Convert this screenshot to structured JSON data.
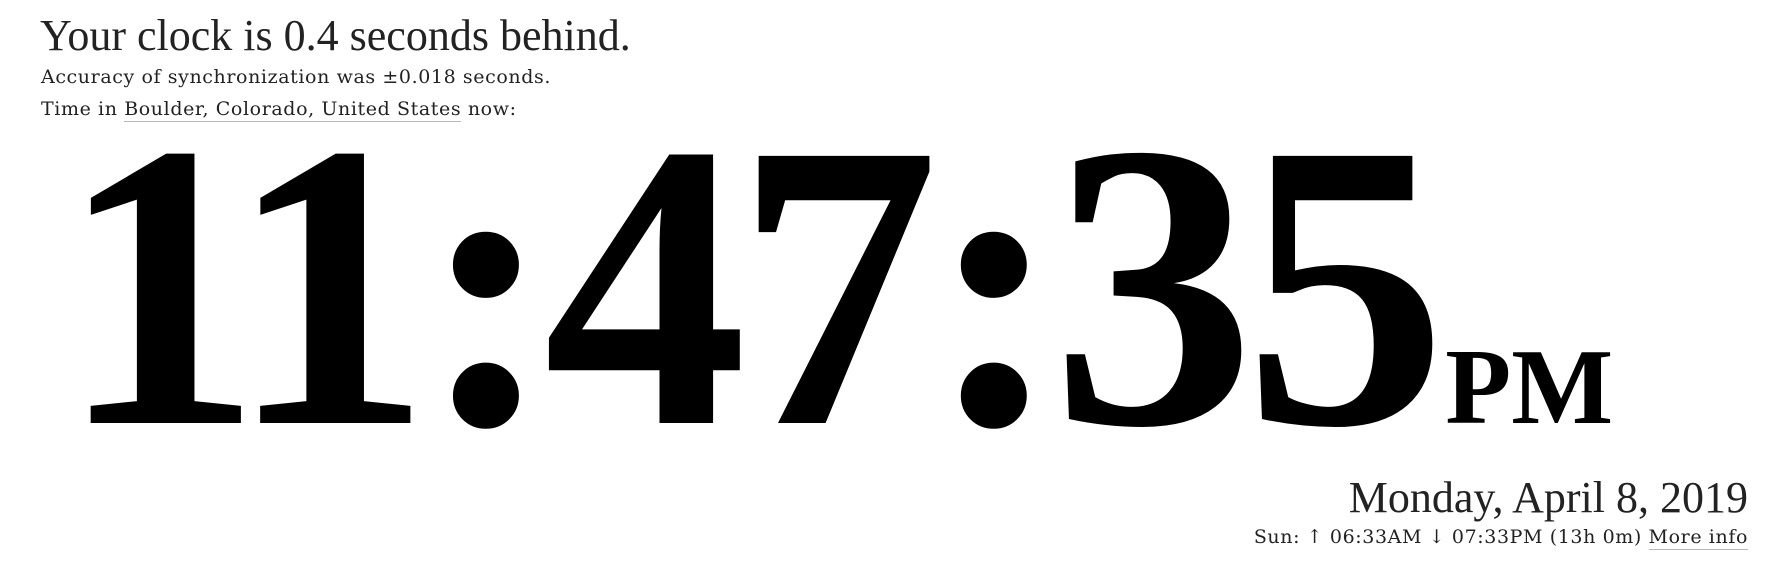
{
  "status": {
    "headline": "Your clock is 0.4 seconds behind.",
    "accuracy_text": "Accuracy of synchronization was ±0.018 seconds."
  },
  "location": {
    "prefix": "Time in ",
    "link_label": "Boulder, Colorado, United States",
    "suffix": " now:"
  },
  "clock": {
    "time": "11:47:35",
    "ampm": "PM"
  },
  "date": {
    "text": "Monday, April 8, 2019"
  },
  "sun": {
    "label": "Sun: ",
    "sunrise_symbol": "↑",
    "sunrise": "06:33AM",
    "sunset_symbol": "↓",
    "sunset": "07:33PM",
    "daylength": "(13h 0m)",
    "more_info_label": "More info"
  }
}
